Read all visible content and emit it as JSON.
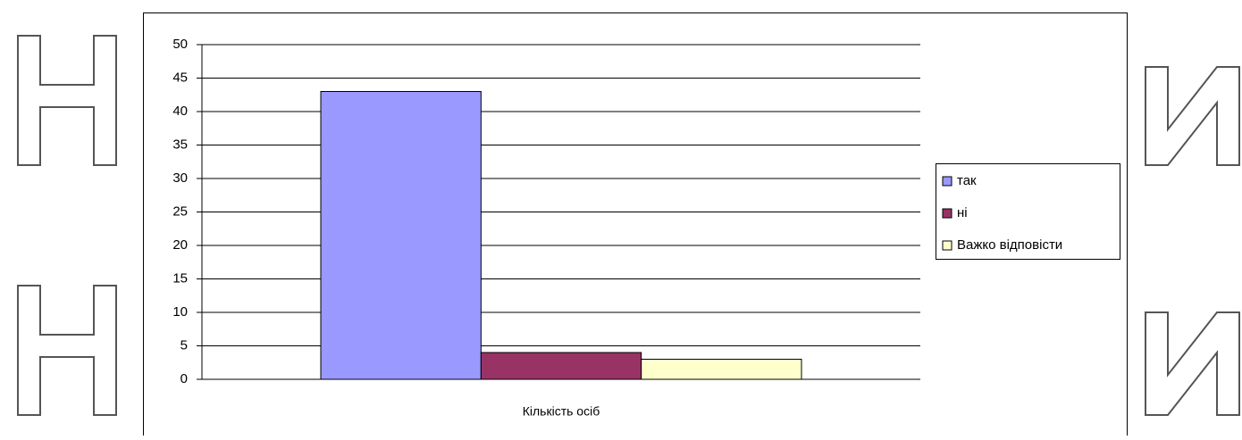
{
  "chart_data": {
    "type": "bar",
    "categories": [
      "Кількість осіб"
    ],
    "series": [
      {
        "name": "так",
        "color": "#9999ff",
        "values": [
          43
        ]
      },
      {
        "name": "ні",
        "color": "#993366",
        "values": [
          4
        ]
      },
      {
        "name": "Важко відповісти",
        "color": "#ffffcc",
        "values": [
          3
        ]
      }
    ],
    "ylim": [
      0,
      50
    ],
    "yticks": [
      0,
      5,
      10,
      15,
      20,
      25,
      30,
      35,
      40,
      45,
      50
    ],
    "grid": true,
    "legend": "right"
  }
}
